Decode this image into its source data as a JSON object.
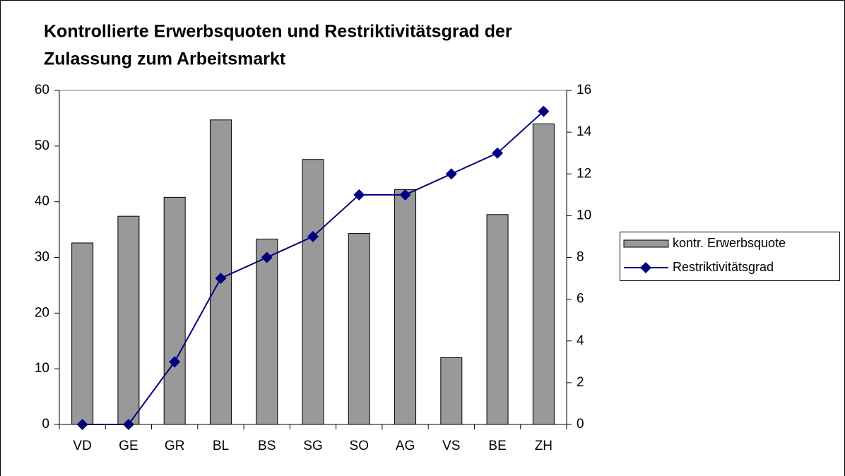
{
  "chart_data": {
    "type": "bar",
    "title": [
      "Kontrollierte Erwerbsquoten und Restriktivitätsgrad der",
      "Zulassung zum Arbeitsmarkt"
    ],
    "categories": [
      "VD",
      "GE",
      "GR",
      "BL",
      "BS",
      "SG",
      "SO",
      "AG",
      "VS",
      "BE",
      "ZH"
    ],
    "series": [
      {
        "name": "kontr. Erwerbsquote",
        "type": "bar",
        "color": "#999999",
        "values": [
          32.6,
          37.4,
          40.8,
          54.7,
          33.3,
          47.6,
          34.3,
          42.2,
          12.0,
          37.7,
          54.0
        ]
      },
      {
        "name": "Restriktivitätsgrad",
        "type": "line",
        "axis": "y2",
        "color": "#000080",
        "values": [
          0,
          0,
          3,
          7,
          8,
          9,
          11,
          11,
          12,
          13,
          15
        ]
      }
    ],
    "ylim": [
      0,
      60
    ],
    "yticks": [
      0,
      10,
      20,
      30,
      40,
      50,
      60
    ],
    "y2lim": [
      0,
      16
    ],
    "y2ticks": [
      0,
      2,
      4,
      6,
      8,
      10,
      12,
      14,
      16
    ],
    "grid": false,
    "legend": "right"
  }
}
